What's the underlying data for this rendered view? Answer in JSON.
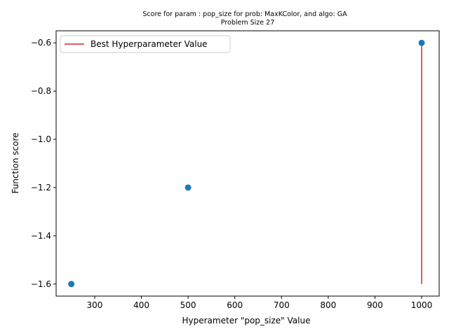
{
  "chart_data": {
    "type": "scatter",
    "title": "Score for param : pop_size for prob: MaxKColor, and algo: GA",
    "subtitle": "Problem Size 27",
    "xlabel": "Hyperameter \"pop_size\" Value",
    "ylabel": "Function score",
    "xlim": [
      217.5,
      1037.5
    ],
    "ylim": [
      -1.65,
      -0.55
    ],
    "xticks": [
      300,
      400,
      500,
      600,
      700,
      800,
      900,
      1000
    ],
    "xtick_labels": [
      "300",
      "400",
      "500",
      "600",
      "700",
      "800",
      "900",
      "1000"
    ],
    "yticks": [
      -1.6,
      -1.4,
      -1.2,
      -1.0,
      -0.8,
      -0.6
    ],
    "ytick_labels": [
      "−1.6",
      "−1.4",
      "−1.2",
      "−1.0",
      "−0.8",
      "−0.6"
    ],
    "grid": false,
    "legend_position": "top-left",
    "series": [
      {
        "x": [
          250,
          500,
          1000
        ],
        "y": [
          -1.6,
          -1.2,
          -0.6
        ],
        "color": "#1f77b4"
      }
    ],
    "best_line": {
      "name": "Best Hyperparameter Value",
      "x": 1000,
      "y_from": -1.6,
      "y_to": -0.6,
      "color": "#d62728"
    }
  }
}
